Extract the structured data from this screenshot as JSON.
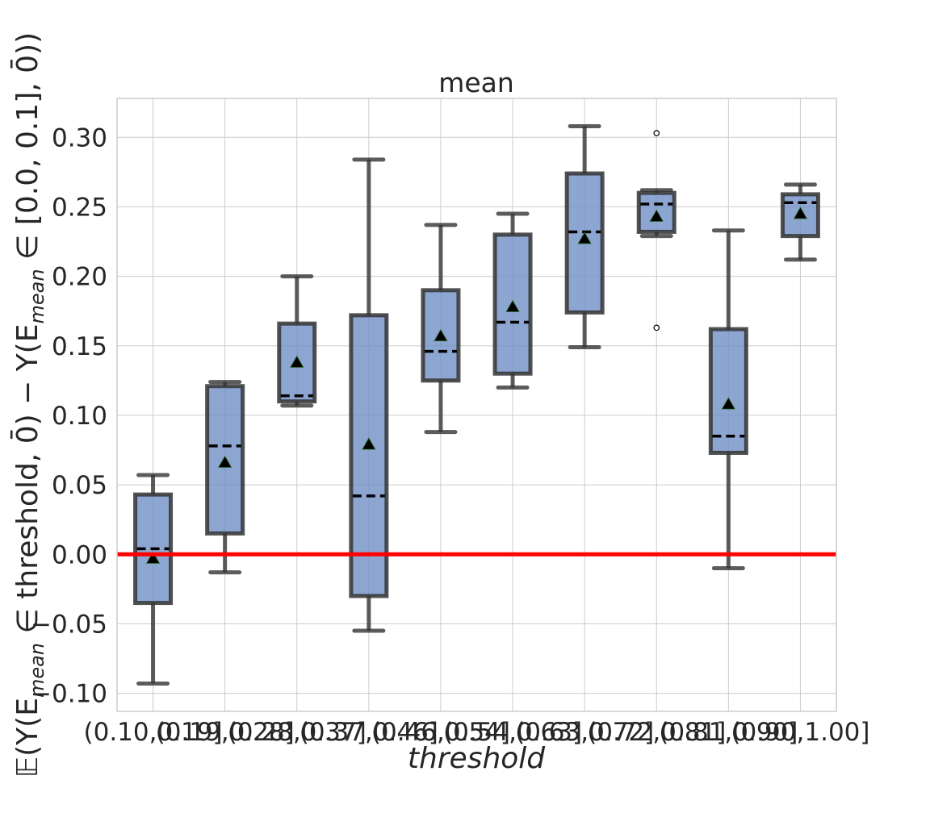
{
  "chart_data": {
    "type": "box",
    "title": "mean",
    "xlabel": "threshold",
    "ylabel": "𝔼(Y(E_mean ∈ threshold, 0̄) − Y(E_mean ∈ [0.0, 0.1], 0̄))",
    "ylabel_parts": {
      "pre": "𝔼(Y(E",
      "sub1": "mean",
      "mid": " ∈ threshold, 0̄) − Y(E",
      "sub2": "mean",
      "post": " ∈ [0.0, 0.1], 0̄))"
    },
    "ylim": [
      -0.113,
      0.328
    ],
    "yticks": [
      -0.1,
      -0.05,
      0.0,
      0.05,
      0.1,
      0.15,
      0.2,
      0.25,
      0.3
    ],
    "ytick_labels": [
      "−0.10",
      "−0.05",
      "0.00",
      "0.05",
      "0.10",
      "0.15",
      "0.20",
      "0.25",
      "0.30"
    ],
    "categories": [
      "(0.10,0.19]",
      "(0.19,0.28]",
      "(0.28,0.37]",
      "(0.37,0.46]",
      "(0.46,0.54]",
      "(0.54,0.63]",
      "(0.63,0.72]",
      "(0.72,0.81]",
      "(0.81,0.90]",
      "(0.90,1.00]"
    ],
    "boxes": [
      {
        "whislo": -0.093,
        "q1": -0.035,
        "median": 0.004,
        "q3": 0.043,
        "whishi": 0.057,
        "mean": -0.003,
        "fliers": []
      },
      {
        "whislo": -0.013,
        "q1": 0.015,
        "median": 0.078,
        "q3": 0.121,
        "whishi": 0.124,
        "mean": 0.066,
        "fliers": []
      },
      {
        "whislo": 0.107,
        "q1": 0.11,
        "median": 0.114,
        "q3": 0.166,
        "whishi": 0.2,
        "mean": 0.138,
        "fliers": []
      },
      {
        "whislo": -0.055,
        "q1": -0.03,
        "median": 0.042,
        "q3": 0.172,
        "whishi": 0.284,
        "mean": 0.079,
        "fliers": []
      },
      {
        "whislo": 0.088,
        "q1": 0.125,
        "median": 0.146,
        "q3": 0.19,
        "whishi": 0.237,
        "mean": 0.157,
        "fliers": []
      },
      {
        "whislo": 0.12,
        "q1": 0.13,
        "median": 0.167,
        "q3": 0.23,
        "whishi": 0.245,
        "mean": 0.178,
        "fliers": []
      },
      {
        "whislo": 0.149,
        "q1": 0.174,
        "median": 0.232,
        "q3": 0.274,
        "whishi": 0.308,
        "mean": 0.227,
        "fliers": []
      },
      {
        "whislo": 0.229,
        "q1": 0.232,
        "median": 0.252,
        "q3": 0.26,
        "whishi": 0.262,
        "mean": 0.243,
        "fliers": [
          0.303,
          0.163
        ]
      },
      {
        "whislo": -0.01,
        "q1": 0.073,
        "median": 0.085,
        "q3": 0.162,
        "whishi": 0.233,
        "mean": 0.108,
        "fliers": []
      },
      {
        "whislo": 0.212,
        "q1": 0.229,
        "median": 0.253,
        "q3": 0.259,
        "whishi": 0.266,
        "mean": 0.245,
        "fliers": []
      }
    ],
    "reference_line": {
      "y": 0.0,
      "color": "#ff0000"
    },
    "grid": true,
    "colors": {
      "box_fill": "#6f8fc5",
      "box_edge": "#333333",
      "median": "#000000",
      "mean_marker": "#000000",
      "grid": "#cccccc",
      "spine": "#cccccc"
    }
  }
}
